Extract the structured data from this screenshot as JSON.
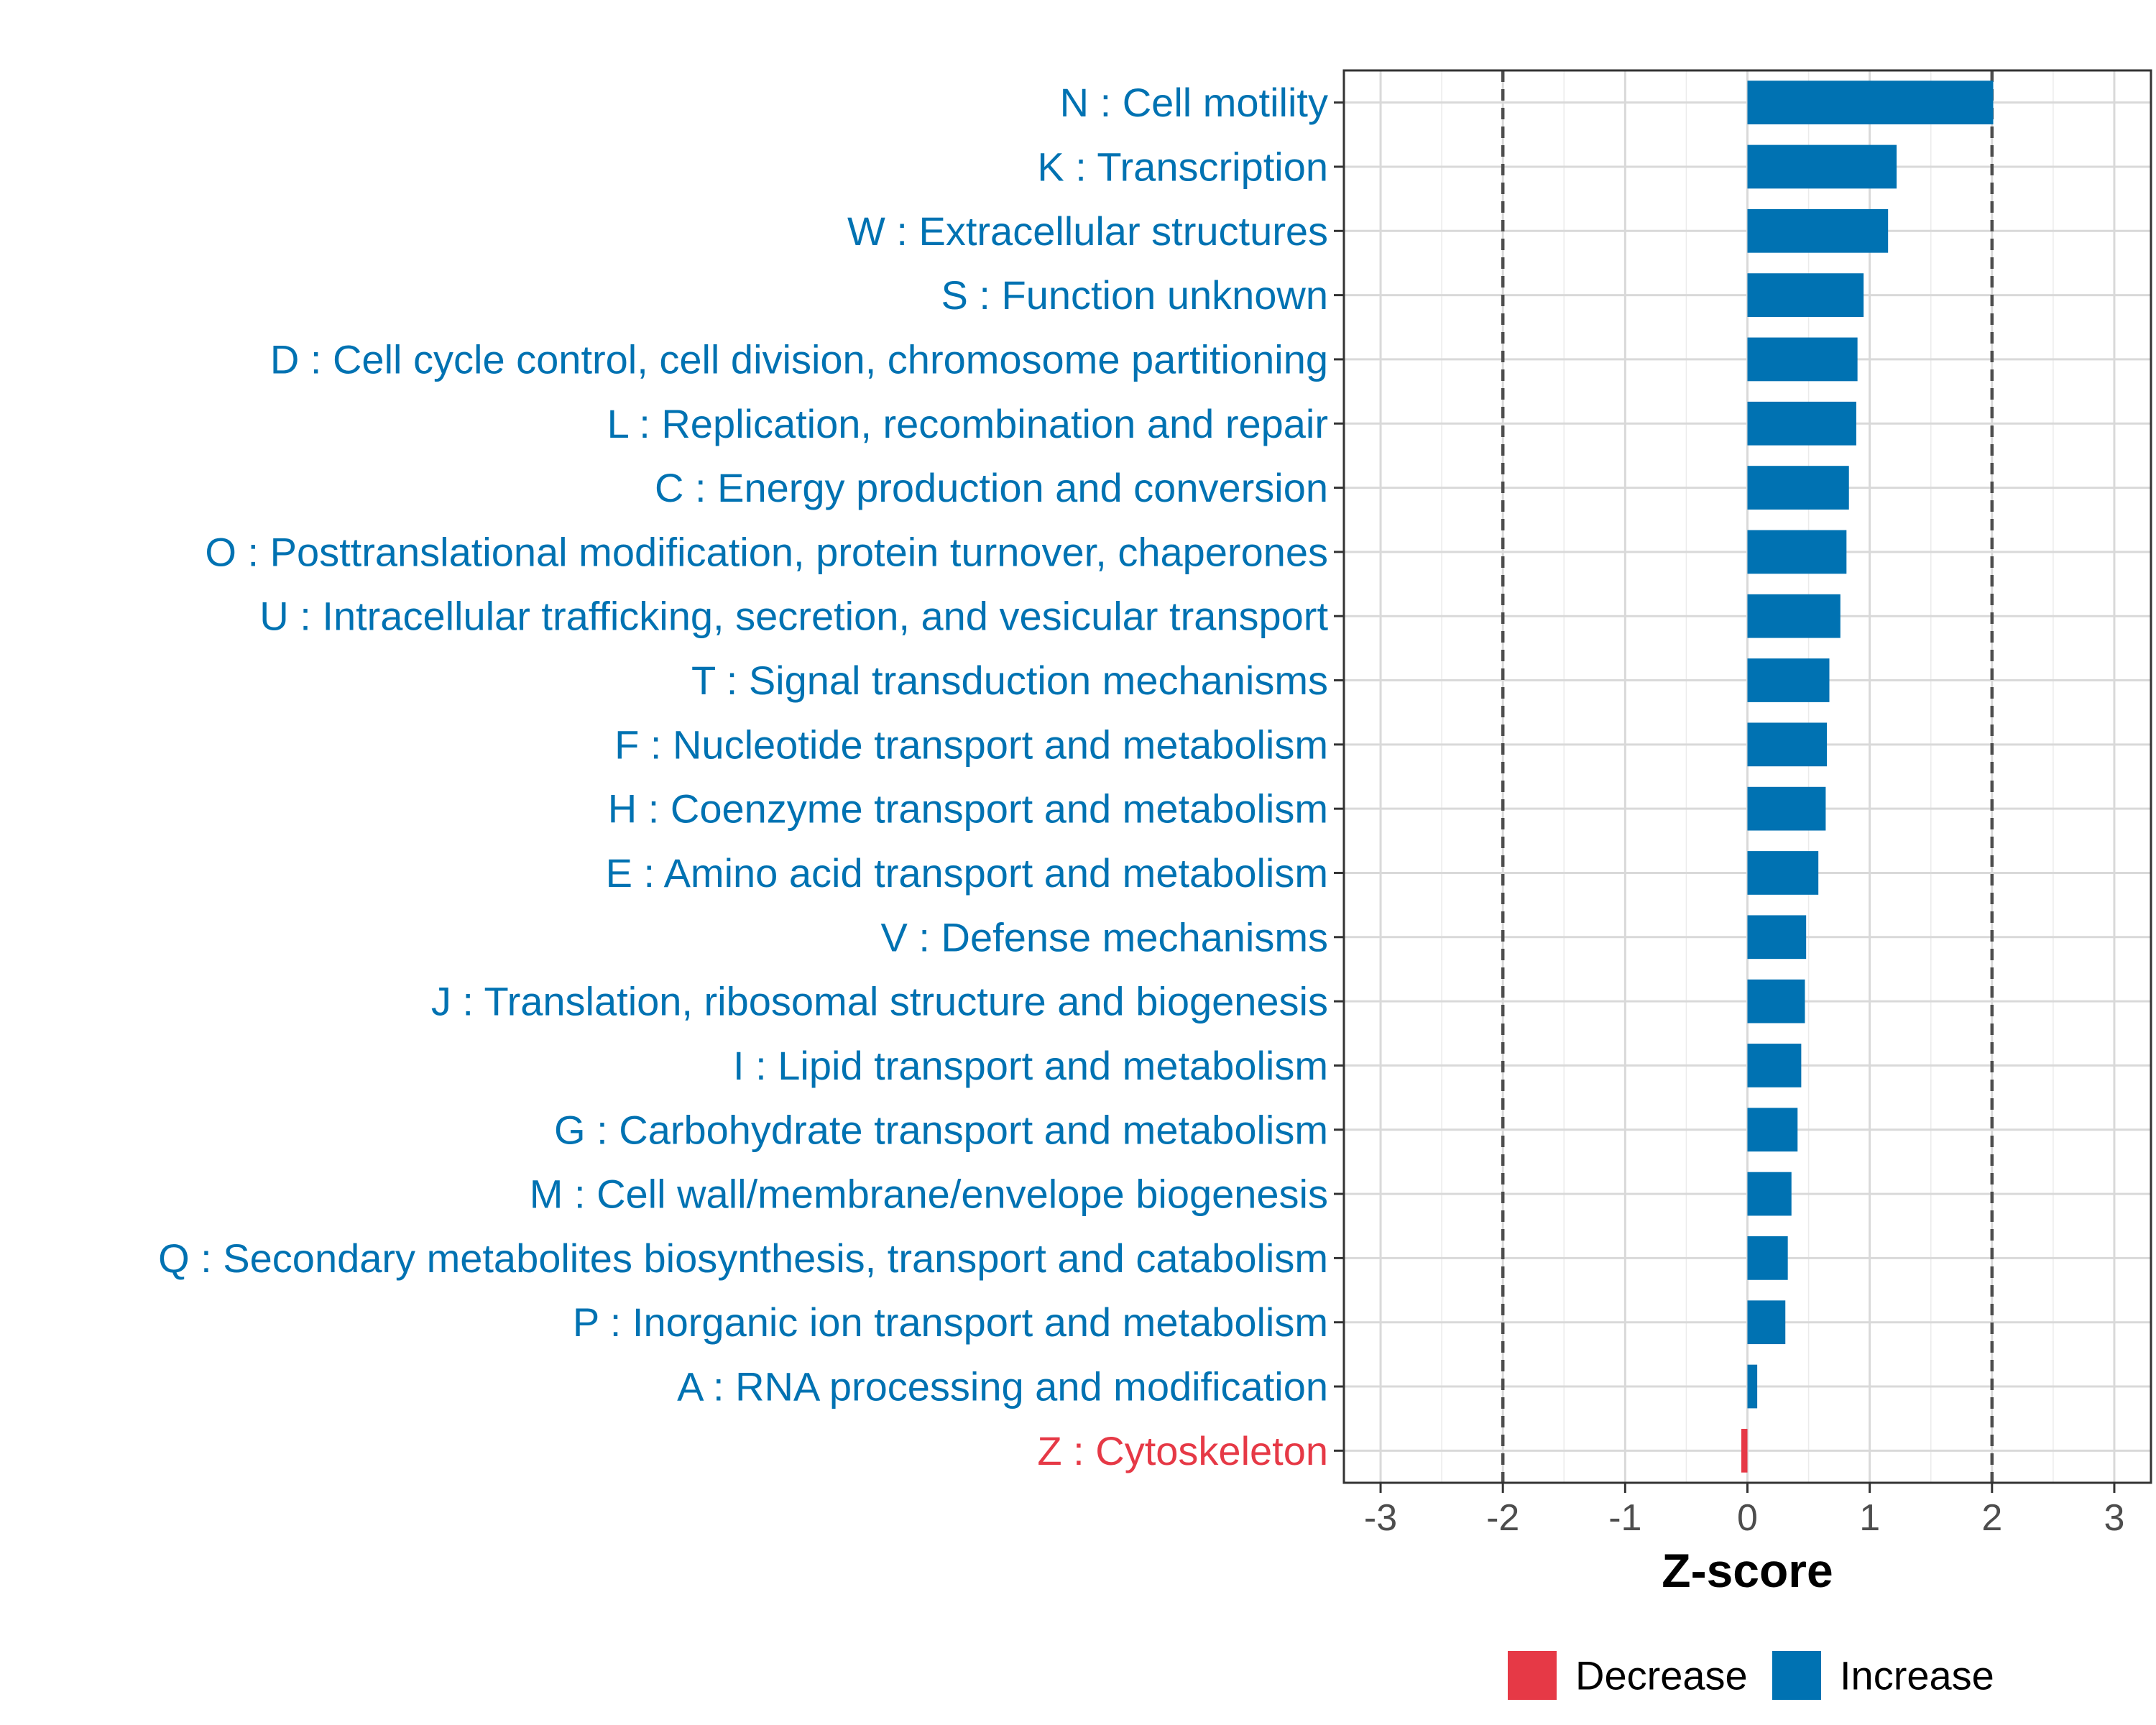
{
  "chart_data": {
    "type": "bar",
    "orientation": "horizontal",
    "title": "",
    "xlabel": "Z-score",
    "ylabel": "",
    "xlim": [
      -3.3,
      3.3
    ],
    "xticks": [
      -3,
      -2,
      -1,
      0,
      1,
      2,
      3
    ],
    "xtick_labels": [
      "-3",
      "-2",
      "-1",
      "0",
      "1",
      "2",
      "3"
    ],
    "threshold_lines": [
      -2,
      2
    ],
    "grid": true,
    "legend_position": "bottom",
    "colors": {
      "Increase": "#0072B2",
      "Decrease": "#E63946"
    },
    "categories": [
      "N : Cell motility",
      "K : Transcription",
      "W : Extracellular structures",
      "S : Function unknown",
      "D : Cell cycle control, cell division, chromosome partitioning",
      "L : Replication, recombination and repair",
      "C : Energy production and conversion",
      "O : Posttranslational modification, protein turnover, chaperones",
      "U : Intracellular trafficking, secretion, and vesicular transport",
      "T : Signal transduction mechanisms",
      "F : Nucleotide transport and metabolism",
      "H : Coenzyme transport and metabolism",
      "E : Amino acid transport and metabolism",
      "V : Defense mechanisms",
      "J : Translation, ribosomal structure and biogenesis",
      "I : Lipid transport and metabolism",
      "G : Carbohydrate transport and metabolism",
      "M : Cell wall/membrane/envelope biogenesis",
      "Q : Secondary metabolites biosynthesis, transport and catabolism",
      "P : Inorganic ion transport and metabolism",
      "A : RNA processing and modification",
      "Z : Cytoskeleton"
    ],
    "values": [
      2.01,
      1.22,
      1.15,
      0.95,
      0.9,
      0.89,
      0.83,
      0.81,
      0.76,
      0.67,
      0.65,
      0.64,
      0.58,
      0.48,
      0.47,
      0.44,
      0.41,
      0.36,
      0.33,
      0.31,
      0.08,
      -0.05
    ],
    "direction": [
      "Increase",
      "Increase",
      "Increase",
      "Increase",
      "Increase",
      "Increase",
      "Increase",
      "Increase",
      "Increase",
      "Increase",
      "Increase",
      "Increase",
      "Increase",
      "Increase",
      "Increase",
      "Increase",
      "Increase",
      "Increase",
      "Increase",
      "Increase",
      "Increase",
      "Decrease"
    ],
    "legend": [
      {
        "label": "Decrease",
        "color": "#E63946"
      },
      {
        "label": "Increase",
        "color": "#0072B2"
      }
    ]
  }
}
